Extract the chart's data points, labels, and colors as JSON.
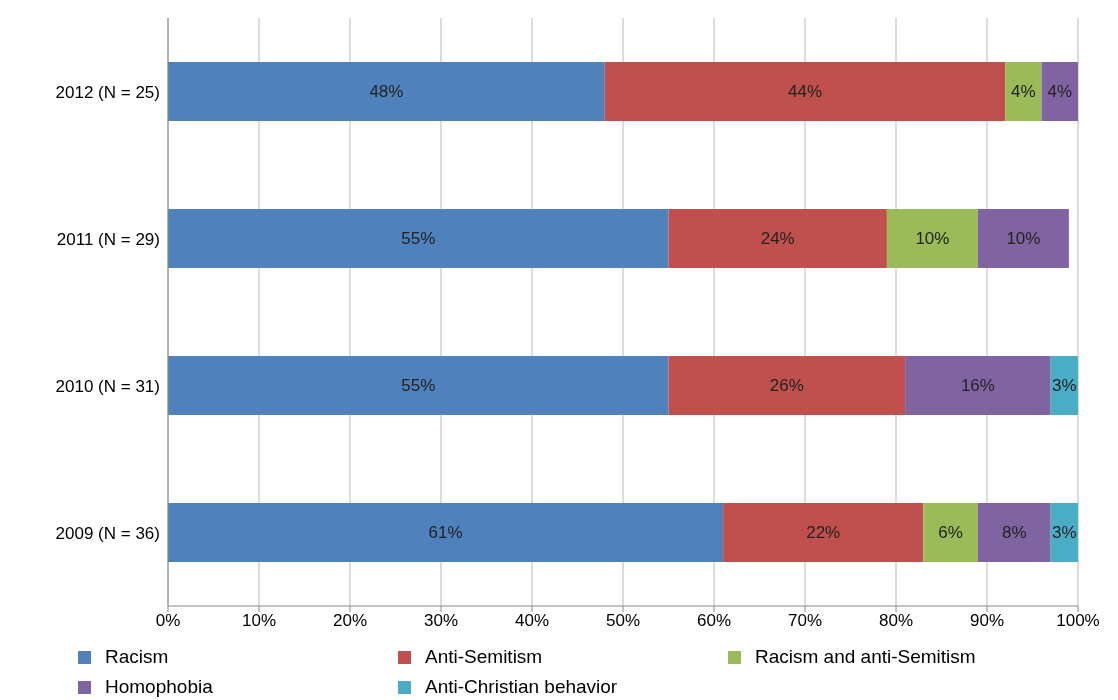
{
  "chart_data": {
    "type": "bar",
    "orientation": "horizontal",
    "stacked": true,
    "categories": [
      "2012 (N = 25)",
      "2011 (N = 29)",
      "2010 (N = 31)",
      "2009 (N = 36)"
    ],
    "series": [
      {
        "name": "Racism",
        "color": "#4f81bd",
        "values": [
          48,
          55,
          55,
          61
        ],
        "value_labels": [
          "48%",
          "55%",
          "55%",
          "61%"
        ]
      },
      {
        "name": "Anti-Semitism",
        "color": "#c0504d",
        "values": [
          44,
          24,
          26,
          22
        ],
        "value_labels": [
          "44%",
          "24%",
          "26%",
          "22%"
        ]
      },
      {
        "name": "Racism and anti-Semitism",
        "color": "#9bbb59",
        "values": [
          4,
          10,
          null,
          6
        ],
        "value_labels": [
          "4%",
          "10%",
          null,
          "6%"
        ]
      },
      {
        "name": "Homophobia",
        "color": "#8064a2",
        "values": [
          4,
          10,
          16,
          8
        ],
        "value_labels": [
          "4%",
          "10%",
          "16%",
          "8%"
        ]
      },
      {
        "name": "Anti-Christian behavior",
        "color": "#4bacc6",
        "values": [
          null,
          null,
          3,
          3
        ],
        "value_labels": [
          null,
          null,
          "3%",
          "3%"
        ]
      }
    ],
    "xlim": [
      0,
      100
    ],
    "xticks": [
      {
        "value": 0,
        "label": "0%"
      },
      {
        "value": 10,
        "label": "10%"
      },
      {
        "value": 20,
        "label": "20%"
      },
      {
        "value": 30,
        "label": "30%"
      },
      {
        "value": 40,
        "label": "40%"
      },
      {
        "value": 50,
        "label": "50%"
      },
      {
        "value": 60,
        "label": "60%"
      },
      {
        "value": 70,
        "label": "70%"
      },
      {
        "value": 80,
        "label": "80%"
      },
      {
        "value": 90,
        "label": "90%"
      },
      {
        "value": 100,
        "label": "100%"
      }
    ],
    "grid": "x",
    "legend": "bottom"
  }
}
